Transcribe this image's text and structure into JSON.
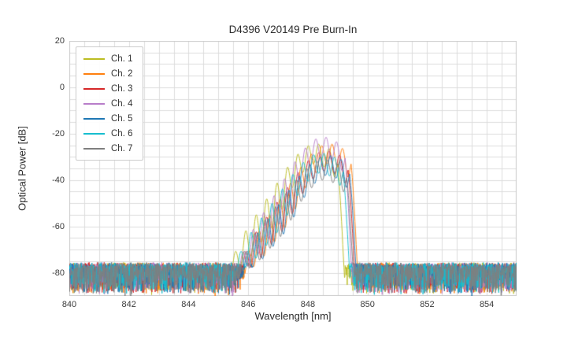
{
  "chart_data": {
    "type": "line",
    "title": "D4396 V20149 Pre Burn-In",
    "xlabel": "Wavelength [nm]",
    "ylabel": "Optical Power [dB]",
    "xlim": [
      840,
      855
    ],
    "ylim": [
      -90,
      20
    ],
    "xticks": [
      840,
      842,
      844,
      846,
      848,
      850,
      852,
      854
    ],
    "yticks": [
      20,
      0,
      -20,
      -40,
      -60,
      -80
    ],
    "grid": {
      "x_step": 0.5,
      "y_step": 5,
      "color": "#dcdcdc",
      "border_color": "#cccccc"
    },
    "legend_position": "upper left",
    "noise_floor_db": -80,
    "ripple_period_nm": 0.35,
    "envelope_keypoints": [
      [
        845.6,
        -78
      ],
      [
        846.2,
        -62
      ],
      [
        846.8,
        -50
      ],
      [
        847.3,
        -40
      ],
      [
        847.8,
        -30
      ],
      [
        848.2,
        -25
      ],
      [
        848.5,
        -23
      ],
      [
        848.8,
        -24
      ],
      [
        849.1,
        -26
      ],
      [
        849.3,
        -30
      ],
      [
        849.45,
        -60
      ],
      [
        849.55,
        -85
      ],
      [
        849.6,
        -130
      ]
    ],
    "ripple_depth_keypoints": [
      [
        845.6,
        6
      ],
      [
        846.3,
        14
      ],
      [
        847.2,
        16
      ],
      [
        847.8,
        12
      ],
      [
        848.3,
        9
      ],
      [
        848.8,
        9
      ],
      [
        849.2,
        10
      ],
      [
        849.4,
        6
      ],
      [
        849.6,
        0
      ]
    ],
    "series": [
      {
        "name": "Ch. 1",
        "color": "#bcbd22",
        "shift_nm": -0.3,
        "peak_db": -24
      },
      {
        "name": "Ch. 2",
        "color": "#ff7f0e",
        "shift_nm": 0.15,
        "peak_db": -24
      },
      {
        "name": "Ch. 3",
        "color": "#d62728",
        "shift_nm": 0.05,
        "peak_db": -27
      },
      {
        "name": "Ch. 4",
        "color": "#b87dc9",
        "shift_nm": -0.05,
        "peak_db": -21
      },
      {
        "name": "Ch. 5",
        "color": "#1f77b4",
        "shift_nm": 0.1,
        "peak_db": -29
      },
      {
        "name": "Ch. 6",
        "color": "#17becf",
        "shift_nm": -0.12,
        "peak_db": -28
      },
      {
        "name": "Ch. 7",
        "color": "#7f7f7f",
        "shift_nm": 0.0,
        "peak_db": -31
      }
    ]
  }
}
